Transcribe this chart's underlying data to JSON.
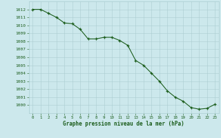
{
  "x": [
    0,
    1,
    2,
    3,
    4,
    5,
    6,
    7,
    8,
    9,
    10,
    11,
    12,
    13,
    14,
    15,
    16,
    17,
    18,
    19,
    20,
    21,
    22,
    23
  ],
  "y": [
    1012,
    1012,
    1011.5,
    1011,
    1010.3,
    1010.2,
    1009.5,
    1008.3,
    1008.3,
    1008.5,
    1008.5,
    1008.1,
    1007.5,
    1005.6,
    1005.0,
    1004.0,
    1003.0,
    1001.8,
    1001.0,
    1000.5,
    999.7,
    999.5,
    999.6,
    1000.1
  ],
  "line_color": "#1a5c1a",
  "marker": "+",
  "marker_color": "#1a5c1a",
  "bg_color": "#cce8ec",
  "grid_color": "#aacdd1",
  "xlabel": "Graphe pression niveau de la mer (hPa)",
  "xlabel_color": "#1a5c1a",
  "tick_color": "#1a5c1a",
  "ylim": [
    999,
    1013
  ],
  "xlim": [
    -0.5,
    23.5
  ],
  "yticks": [
    1000,
    1001,
    1002,
    1003,
    1004,
    1005,
    1006,
    1007,
    1008,
    1009,
    1010,
    1011,
    1012
  ],
  "xticks": [
    0,
    1,
    2,
    3,
    4,
    5,
    6,
    7,
    8,
    9,
    10,
    11,
    12,
    13,
    14,
    15,
    16,
    17,
    18,
    19,
    20,
    21,
    22,
    23
  ]
}
